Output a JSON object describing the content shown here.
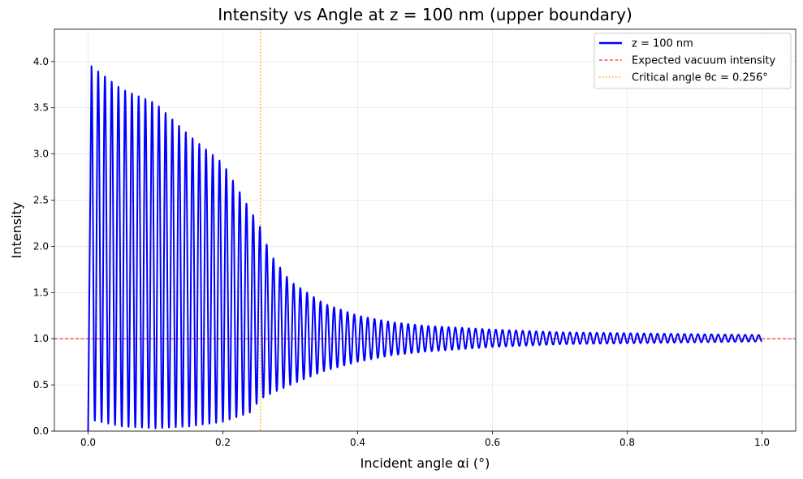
{
  "chart_data": {
    "type": "line",
    "title": "Intensity vs Angle at z = 100 nm (upper boundary)",
    "xlabel": "Incident angle αi (°)",
    "ylabel": "Intensity",
    "xlim": [
      -0.05,
      1.05
    ],
    "ylim": [
      0.0,
      4.35
    ],
    "xticks": [
      0.0,
      0.2,
      0.4,
      0.6,
      0.8,
      1.0
    ],
    "xtick_labels": [
      "0.0",
      "0.2",
      "0.4",
      "0.6",
      "0.8",
      "1.0"
    ],
    "yticks": [
      0.0,
      0.5,
      1.0,
      1.5,
      2.0,
      2.5,
      3.0,
      3.5,
      4.0
    ],
    "ytick_labels": [
      "0.0",
      "0.5",
      "1.0",
      "1.5",
      "2.0",
      "2.5",
      "3.0",
      "3.5",
      "4.0"
    ],
    "grid": true,
    "legend_position": "top-right",
    "series": [
      {
        "name": "z = 100 nm",
        "color": "#0000ff",
        "style": "solid",
        "envelope_x": [
          0.0,
          0.005,
          0.05,
          0.1,
          0.15,
          0.2,
          0.24,
          0.256,
          0.27,
          0.3,
          0.35,
          0.4,
          0.45,
          0.5,
          0.6,
          0.7,
          0.8,
          0.9,
          1.0
        ],
        "envelope_max": [
          0.0,
          3.95,
          3.7,
          3.55,
          3.2,
          2.9,
          2.4,
          2.2,
          1.92,
          1.62,
          1.38,
          1.25,
          1.18,
          1.14,
          1.1,
          1.07,
          1.06,
          1.05,
          1.04
        ],
        "envelope_min": [
          0.0,
          0.12,
          0.05,
          0.03,
          0.05,
          0.1,
          0.2,
          0.35,
          0.4,
          0.5,
          0.65,
          0.75,
          0.82,
          0.86,
          0.91,
          0.94,
          0.95,
          0.96,
          0.97
        ],
        "oscillation_peaks": 100
      },
      {
        "name": "Expected vacuum intensity",
        "color": "#ff0000",
        "style": "dashed",
        "y": 1.0
      },
      {
        "name": "Critical angle θc = 0.256°",
        "color": "#ffa500",
        "style": "dotted",
        "x": 0.256
      }
    ]
  }
}
